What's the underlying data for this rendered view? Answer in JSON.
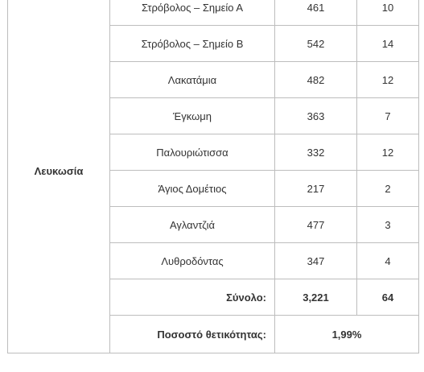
{
  "region": "Λευκωσία",
  "rows": [
    {
      "point": "Στρόβολος – Σημείο Α",
      "a": "461",
      "b": "10"
    },
    {
      "point": "Στρόβολος – Σημείο Β",
      "a": "542",
      "b": "14"
    },
    {
      "point": "Λακατάμια",
      "a": "482",
      "b": "12"
    },
    {
      "point": "Έγκωμη",
      "a": "363",
      "b": "7"
    },
    {
      "point": "Παλουριώτισσα",
      "a": "332",
      "b": "12"
    },
    {
      "point": "Άγιος Δομέτιος",
      "a": "217",
      "b": "2"
    },
    {
      "point": "Αγλαντζιά",
      "a": "477",
      "b": "3"
    },
    {
      "point": "Λυθροδόντας",
      "a": "347",
      "b": "4"
    }
  ],
  "total": {
    "label": "Σύνολο:",
    "a": "3,221",
    "b": "64"
  },
  "positivity": {
    "label": "Ποσοστό θετικότητας:",
    "value": "1,99%"
  }
}
